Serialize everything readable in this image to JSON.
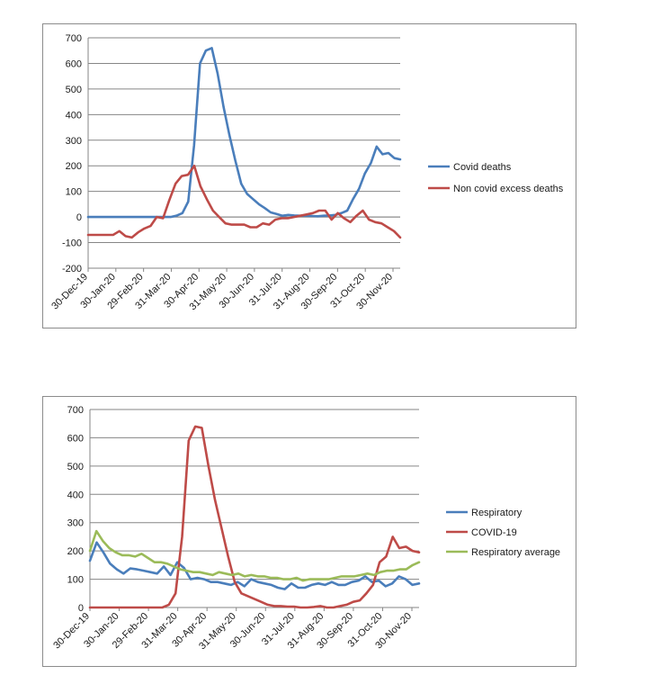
{
  "chart_data": [
    {
      "type": "line",
      "ylim": [
        -200,
        700
      ],
      "yticks": [
        -200,
        -100,
        0,
        100,
        200,
        300,
        400,
        500,
        600,
        700
      ],
      "xtick_labels": [
        "30-Dec-19",
        "30-Jan-20",
        "29-Feb-20",
        "31-Mar-20",
        "30-Apr-20",
        "31-May-20",
        "30-Jun-20",
        "31-Jul-20",
        "31-Aug-20",
        "30-Sep-20",
        "31-Oct-20",
        "30-Nov-20"
      ],
      "grid": true,
      "legend_position": "right",
      "series": [
        {
          "name": "Covid deaths",
          "color": "#4a7ebb",
          "values": [
            0,
            0,
            0,
            0,
            0,
            0,
            0,
            0,
            0,
            0,
            0,
            0,
            0,
            0,
            0,
            5,
            15,
            60,
            280,
            600,
            650,
            660,
            560,
            430,
            320,
            220,
            130,
            90,
            70,
            50,
            35,
            18,
            12,
            5,
            8,
            6,
            5,
            5,
            4,
            3,
            5,
            6,
            8,
            15,
            25,
            70,
            110,
            170,
            210,
            275,
            245,
            250,
            230,
            225
          ]
        },
        {
          "name": "Non covid excess deaths",
          "color": "#be4b48",
          "values": [
            -70,
            -70,
            -70,
            -70,
            -70,
            -55,
            -75,
            -80,
            -60,
            -45,
            -35,
            0,
            -5,
            65,
            130,
            160,
            165,
            200,
            120,
            70,
            25,
            0,
            -25,
            -30,
            -30,
            -30,
            -40,
            -40,
            -25,
            -30,
            -10,
            -5,
            -5,
            0,
            5,
            10,
            15,
            25,
            25,
            -10,
            15,
            -5,
            -20,
            5,
            25,
            -10,
            -20,
            -25,
            -40,
            -55,
            -80
          ]
        }
      ]
    },
    {
      "type": "line",
      "ylim": [
        0,
        700
      ],
      "yticks": [
        0,
        100,
        200,
        300,
        400,
        500,
        600,
        700
      ],
      "xtick_labels": [
        "30-Dec-19",
        "30-Jan-20",
        "29-Feb-20",
        "31-Mar-20",
        "30-Apr-20",
        "31-May-20",
        "30-Jun-20",
        "31-Jul-20",
        "31-Aug-20",
        "30-Sep-20",
        "31-Oct-20",
        "30-Nov-20"
      ],
      "grid": true,
      "legend_position": "right",
      "series": [
        {
          "name": "Respiratory",
          "color": "#4a7ebb",
          "values": [
            165,
            230,
            195,
            155,
            135,
            120,
            138,
            135,
            130,
            125,
            120,
            145,
            115,
            160,
            140,
            100,
            105,
            100,
            90,
            90,
            85,
            80,
            90,
            75,
            100,
            90,
            85,
            80,
            70,
            65,
            85,
            70,
            70,
            80,
            85,
            80,
            90,
            80,
            80,
            90,
            95,
            110,
            90,
            95,
            75,
            85,
            110,
            100,
            80,
            85
          ]
        },
        {
          "name": "COVID-19",
          "color": "#be4b48",
          "values": [
            0,
            0,
            0,
            0,
            0,
            0,
            0,
            0,
            0,
            0,
            0,
            0,
            10,
            50,
            250,
            590,
            640,
            635,
            500,
            380,
            280,
            180,
            90,
            50,
            40,
            30,
            20,
            10,
            5,
            5,
            3,
            3,
            0,
            0,
            2,
            5,
            0,
            0,
            5,
            10,
            20,
            25,
            50,
            80,
            160,
            180,
            250,
            210,
            215,
            200,
            195
          ]
        },
        {
          "name": "Respiratory average",
          "color": "#9bbb59",
          "values": [
            200,
            270,
            235,
            210,
            195,
            185,
            185,
            180,
            190,
            175,
            160,
            160,
            155,
            145,
            135,
            130,
            125,
            125,
            120,
            115,
            125,
            120,
            115,
            120,
            110,
            115,
            110,
            110,
            105,
            105,
            100,
            100,
            105,
            95,
            100,
            100,
            100,
            100,
            105,
            110,
            110,
            110,
            115,
            120,
            115,
            125,
            130,
            130,
            135,
            135,
            150,
            160
          ]
        }
      ]
    }
  ]
}
